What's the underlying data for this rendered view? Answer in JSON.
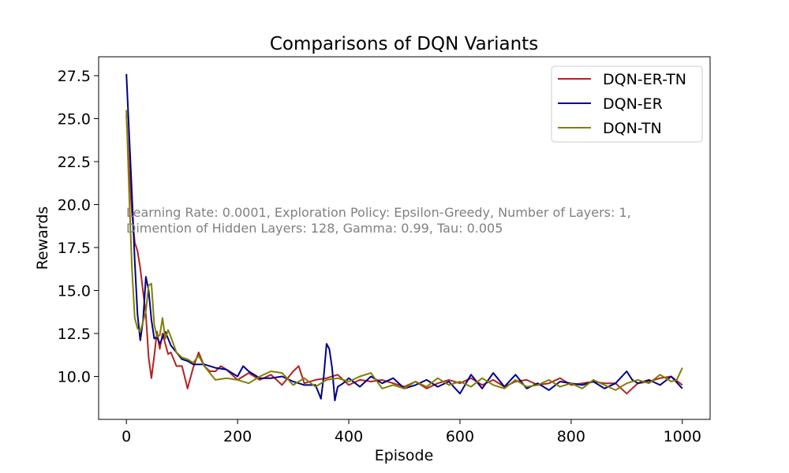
{
  "chart_data": {
    "type": "line",
    "title": "Comparisons of DQN Variants",
    "xlabel": "Episode",
    "ylabel": "Rewards",
    "xlim": [
      -50,
      1050
    ],
    "ylim": [
      7.5,
      28.6
    ],
    "xticks": [
      0,
      200,
      400,
      600,
      800,
      1000
    ],
    "yticks": [
      10.0,
      12.5,
      15.0,
      17.5,
      20.0,
      22.5,
      25.0,
      27.5
    ],
    "xtick_labels": [
      "0",
      "200",
      "400",
      "600",
      "800",
      "1000"
    ],
    "ytick_labels": [
      "10.0",
      "12.5",
      "15.0",
      "17.5",
      "20.0",
      "22.5",
      "25.0",
      "27.5"
    ],
    "grid": false,
    "legend_position": "top-right",
    "annotation": [
      "Learning Rate: 0.0001, Exploration Policy: Epsilon-Greedy, Number of Layers: 1,",
      "Dimention of Hidden Layers: 128, Gamma: 0.99, Tau: 0.005"
    ],
    "series": [
      {
        "name": "DQN-ER-TN",
        "color": "#b22222",
        "x": [
          0,
          5,
          10,
          15,
          20,
          25,
          30,
          35,
          40,
          45,
          50,
          55,
          60,
          65,
          70,
          75,
          80,
          90,
          100,
          110,
          120,
          130,
          140,
          150,
          160,
          170,
          180,
          200,
          220,
          240,
          260,
          280,
          300,
          310,
          320,
          340,
          360,
          380,
          400,
          420,
          440,
          460,
          480,
          500,
          520,
          540,
          560,
          580,
          600,
          620,
          640,
          660,
          680,
          700,
          720,
          740,
          760,
          780,
          800,
          820,
          840,
          860,
          880,
          900,
          920,
          940,
          960,
          980,
          1000
        ],
        "y": [
          25.2,
          22.0,
          19.5,
          17.8,
          17.3,
          16.3,
          14.9,
          13.6,
          11.1,
          9.9,
          11.2,
          12.6,
          11.6,
          12.5,
          11.9,
          11.3,
          11.4,
          10.6,
          10.6,
          9.3,
          10.5,
          11.4,
          10.6,
          10.3,
          10.3,
          10.6,
          10.4,
          9.8,
          10.2,
          9.8,
          10.1,
          9.5,
          10.3,
          10.6,
          9.6,
          9.8,
          9.9,
          10.1,
          9.5,
          9.8,
          9.7,
          9.8,
          9.6,
          9.4,
          9.7,
          9.3,
          9.6,
          9.8,
          9.6,
          9.9,
          9.5,
          9.8,
          9.4,
          9.7,
          9.8,
          9.5,
          9.6,
          9.9,
          9.5,
          9.6,
          9.7,
          9.6,
          9.6,
          9.0,
          9.6,
          9.7,
          9.9,
          10.0,
          9.5
        ]
      },
      {
        "name": "DQN-ER",
        "color": "#00008b",
        "x": [
          0,
          5,
          10,
          15,
          20,
          25,
          30,
          35,
          40,
          45,
          50,
          55,
          60,
          70,
          80,
          90,
          100,
          110,
          120,
          140,
          160,
          180,
          200,
          210,
          220,
          240,
          260,
          280,
          300,
          320,
          340,
          350,
          355,
          360,
          365,
          370,
          375,
          380,
          390,
          400,
          420,
          440,
          460,
          480,
          500,
          520,
          540,
          560,
          580,
          600,
          620,
          640,
          660,
          680,
          700,
          720,
          740,
          760,
          780,
          800,
          820,
          840,
          860,
          880,
          900,
          910,
          920,
          940,
          960,
          980,
          1000
        ],
        "y": [
          27.6,
          24.0,
          20.5,
          16.7,
          13.6,
          12.1,
          13.3,
          15.8,
          15.0,
          13.3,
          12.2,
          12.3,
          11.9,
          12.6,
          11.8,
          11.4,
          11.0,
          10.9,
          10.7,
          10.7,
          10.5,
          10.4,
          10.0,
          10.6,
          10.3,
          9.9,
          9.9,
          10.0,
          9.7,
          9.5,
          9.5,
          8.7,
          10.0,
          11.9,
          11.6,
          10.5,
          8.6,
          9.4,
          9.6,
          9.9,
          9.4,
          10.0,
          9.6,
          9.9,
          9.3,
          9.5,
          9.8,
          9.4,
          9.7,
          9.0,
          10.1,
          9.3,
          10.2,
          9.4,
          10.1,
          9.3,
          9.6,
          9.2,
          9.7,
          9.6,
          9.5,
          9.7,
          9.3,
          9.6,
          10.3,
          9.8,
          9.6,
          9.8,
          9.5,
          10.0,
          9.3
        ]
      },
      {
        "name": "DQN-TN",
        "color": "#808000",
        "x": [
          0,
          5,
          10,
          15,
          20,
          25,
          30,
          35,
          40,
          45,
          50,
          55,
          60,
          65,
          70,
          75,
          80,
          90,
          100,
          110,
          120,
          130,
          140,
          150,
          160,
          180,
          200,
          220,
          240,
          260,
          280,
          300,
          320,
          340,
          360,
          380,
          400,
          420,
          440,
          460,
          480,
          500,
          520,
          540,
          560,
          580,
          600,
          620,
          640,
          660,
          680,
          700,
          720,
          740,
          760,
          780,
          800,
          820,
          840,
          860,
          880,
          900,
          920,
          940,
          960,
          980,
          990,
          1000
        ],
        "y": [
          25.5,
          20.5,
          16.2,
          13.4,
          12.8,
          12.6,
          13.2,
          13.8,
          15.3,
          15.4,
          13.0,
          12.3,
          12.4,
          13.4,
          12.2,
          12.7,
          12.3,
          11.4,
          11.1,
          11.0,
          10.8,
          11.2,
          10.6,
          10.2,
          9.8,
          9.9,
          9.8,
          9.6,
          10.0,
          10.3,
          10.2,
          9.5,
          9.9,
          9.4,
          9.8,
          9.9,
          9.7,
          10.0,
          10.2,
          9.3,
          9.5,
          9.3,
          9.7,
          9.4,
          9.9,
          9.5,
          9.7,
          9.4,
          9.9,
          9.5,
          9.3,
          9.8,
          9.4,
          9.5,
          9.8,
          9.4,
          9.6,
          9.3,
          9.8,
          9.5,
          9.2,
          9.6,
          9.8,
          9.6,
          10.1,
          9.7,
          9.8,
          10.5
        ]
      }
    ]
  }
}
